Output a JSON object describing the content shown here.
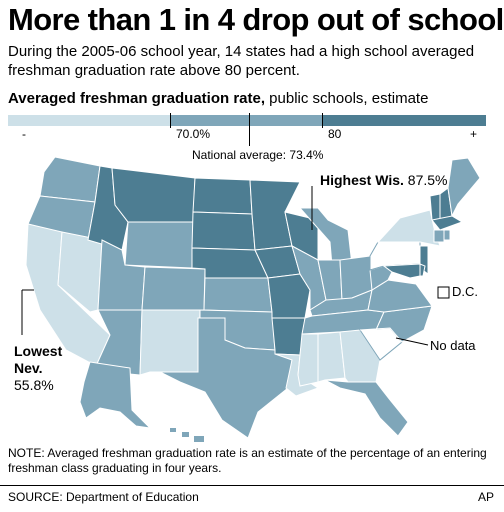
{
  "headline": "More than 1 in 4 drop out of school",
  "subtitle": "During the 2005-06 school year, 14 states had a high school averaged freshman graduation rate above 80 percent.",
  "legend": {
    "title_bold": "Averaged freshman graduation rate,",
    "title_rest": " public schools, estimate",
    "min_label": "-",
    "max_label": "+",
    "tick_70": "70.0%",
    "tick_80": "80",
    "colors": [
      "#cde0e8",
      "#7fa6b9",
      "#4d7d92"
    ]
  },
  "national_average": "National average: 73.4%",
  "callouts": {
    "highest_bold": "Highest Wis.",
    "highest_value": "87.5%",
    "lowest_line1": "Lowest",
    "lowest_line2": "Nev.",
    "lowest_value": "55.8%",
    "dc": "D.C.",
    "no_data": "No data"
  },
  "note": "NOTE: Averaged freshman graduation rate is an estimate of the percentage of an entering freshman class graduating in four years.",
  "source": "SOURCE: Department of Education",
  "credit": "AP"
}
